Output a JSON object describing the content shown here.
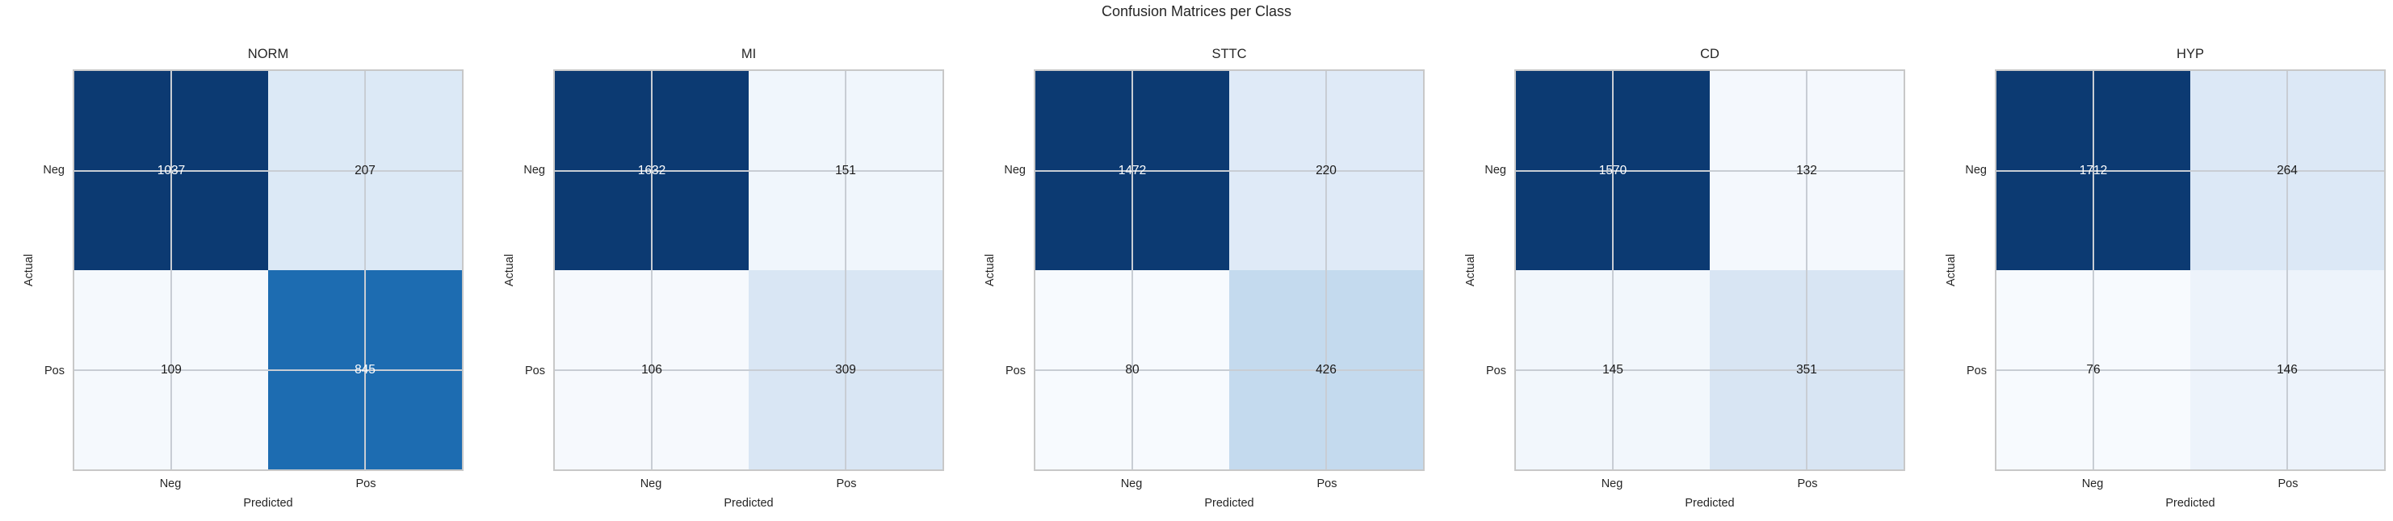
{
  "figure": {
    "title": "Confusion Matrices per Class",
    "background": "#ffffff",
    "grid_color": "#c8cdd4",
    "border_color": "#c8c8c8",
    "text_color": "#262626",
    "colormap": "Blues"
  },
  "chart_data": [
    {
      "type": "heatmap",
      "title": "NORM",
      "xlabel": "Predicted",
      "ylabel": "Actual",
      "x_ticks": [
        "Neg",
        "Pos"
      ],
      "y_ticks": [
        "Neg",
        "Pos"
      ],
      "values": [
        [
          1037,
          207
        ],
        [
          109,
          845
        ]
      ],
      "cells": [
        {
          "value": "1037",
          "bg": "#0c3a72",
          "fg": "#ffffff"
        },
        {
          "value": "207",
          "bg": "#dce9f6",
          "fg": "#1a1a1a"
        },
        {
          "value": "109",
          "bg": "#f5f9fd",
          "fg": "#1a1a1a"
        },
        {
          "value": "845",
          "bg": "#1d6cb1",
          "fg": "#ffffff"
        }
      ]
    },
    {
      "type": "heatmap",
      "title": "MI",
      "xlabel": "Predicted",
      "ylabel": "Actual",
      "x_ticks": [
        "Neg",
        "Pos"
      ],
      "y_ticks": [
        "Neg",
        "Pos"
      ],
      "values": [
        [
          1632,
          151
        ],
        [
          106,
          309
        ]
      ],
      "cells": [
        {
          "value": "1632",
          "bg": "#0c3a72",
          "fg": "#ffffff"
        },
        {
          "value": "151",
          "bg": "#f0f6fc",
          "fg": "#1a1a1a"
        },
        {
          "value": "106",
          "bg": "#f6f9fd",
          "fg": "#1a1a1a"
        },
        {
          "value": "309",
          "bg": "#d9e6f4",
          "fg": "#1a1a1a"
        }
      ]
    },
    {
      "type": "heatmap",
      "title": "STTC",
      "xlabel": "Predicted",
      "ylabel": "Actual",
      "x_ticks": [
        "Neg",
        "Pos"
      ],
      "y_ticks": [
        "Neg",
        "Pos"
      ],
      "values": [
        [
          1472,
          220
        ],
        [
          80,
          426
        ]
      ],
      "cells": [
        {
          "value": "1472",
          "bg": "#0c3a72",
          "fg": "#ffffff"
        },
        {
          "value": "220",
          "bg": "#dfeaf7",
          "fg": "#1a1a1a"
        },
        {
          "value": "80",
          "bg": "#f7fafe",
          "fg": "#1a1a1a"
        },
        {
          "value": "426",
          "bg": "#c4daee",
          "fg": "#1a1a1a"
        }
      ]
    },
    {
      "type": "heatmap",
      "title": "CD",
      "xlabel": "Predicted",
      "ylabel": "Actual",
      "x_ticks": [
        "Neg",
        "Pos"
      ],
      "y_ticks": [
        "Neg",
        "Pos"
      ],
      "values": [
        [
          1570,
          132
        ],
        [
          145,
          351
        ]
      ],
      "cells": [
        {
          "value": "1570",
          "bg": "#0c3a72",
          "fg": "#ffffff"
        },
        {
          "value": "132",
          "bg": "#f4f8fd",
          "fg": "#1a1a1a"
        },
        {
          "value": "145",
          "bg": "#f2f7fc",
          "fg": "#1a1a1a"
        },
        {
          "value": "351",
          "bg": "#d8e5f3",
          "fg": "#1a1a1a"
        }
      ]
    },
    {
      "type": "heatmap",
      "title": "HYP",
      "xlabel": "Predicted",
      "ylabel": "Actual",
      "x_ticks": [
        "Neg",
        "Pos"
      ],
      "y_ticks": [
        "Neg",
        "Pos"
      ],
      "values": [
        [
          1712,
          264
        ],
        [
          76,
          146
        ]
      ],
      "cells": [
        {
          "value": "1712",
          "bg": "#0c3a72",
          "fg": "#ffffff"
        },
        {
          "value": "264",
          "bg": "#dce8f6",
          "fg": "#1a1a1a"
        },
        {
          "value": "76",
          "bg": "#f7fafe",
          "fg": "#1a1a1a"
        },
        {
          "value": "146",
          "bg": "#edf3fb",
          "fg": "#1a1a1a"
        }
      ]
    }
  ]
}
